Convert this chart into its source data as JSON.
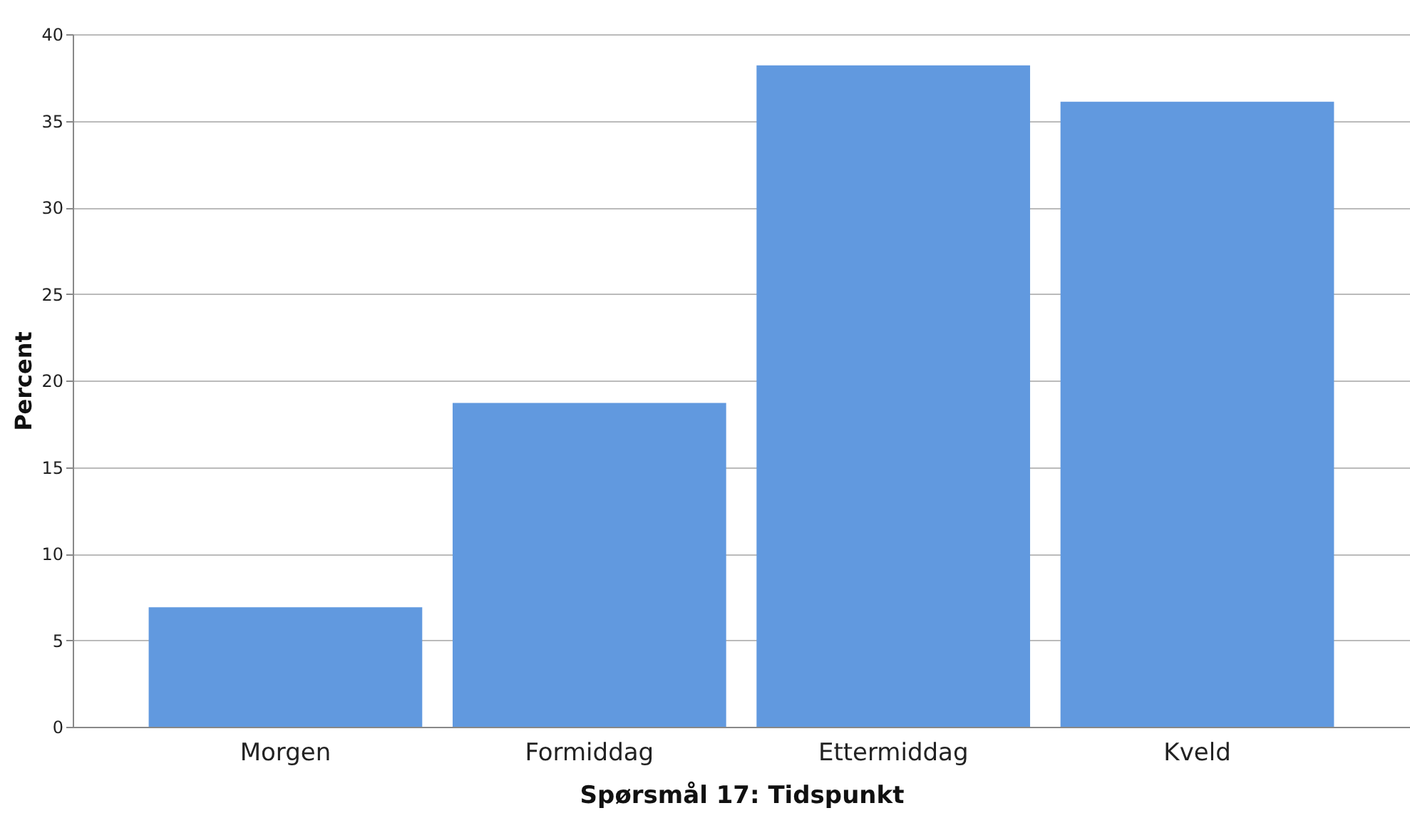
{
  "chart_data": {
    "type": "bar",
    "xlabel": "Spørsmål 17: Tidspunkt",
    "ylabel": "Percent",
    "categories": [
      "Morgen",
      "Formiddag",
      "Ettermiddag",
      "Kveld"
    ],
    "values": [
      6.9,
      18.7,
      38.2,
      36.1
    ],
    "color": "#6199df",
    "ylim": [
      0,
      40
    ],
    "yticks": [
      0,
      5,
      10,
      15,
      20,
      25,
      30,
      35,
      40
    ],
    "grid": "y"
  }
}
